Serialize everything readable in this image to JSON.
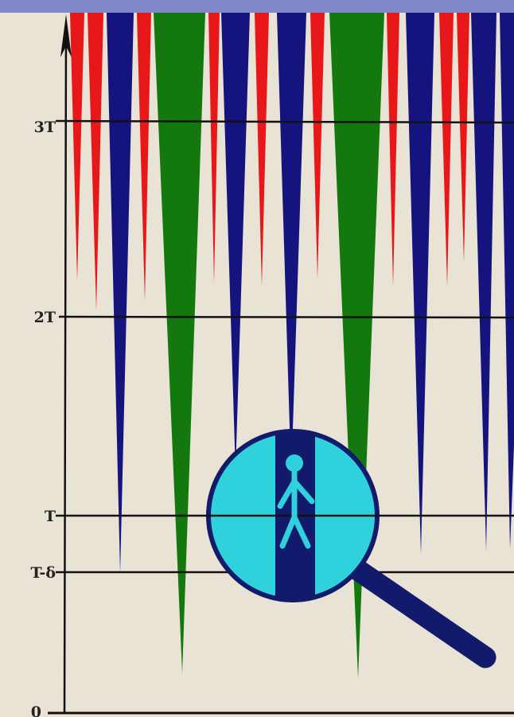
{
  "axis": {
    "y_labels": {
      "three_t": "3T",
      "two_t": "2T",
      "t": "T",
      "t_minus_delta": "T-δ",
      "zero": "0"
    }
  },
  "colors": {
    "background": "#e9e3d5",
    "red_spike": "#e8181a",
    "blue_spike": "#15147e",
    "green_spike": "#13790f",
    "magnifier_lens": "#2fd1dc",
    "magnifier_dark": "#111a6b",
    "figure": "#2fd1dc",
    "top_band": "#7f89c8"
  },
  "icons": {
    "magnifier": "magnifying-glass-icon",
    "person": "person-icon"
  }
}
